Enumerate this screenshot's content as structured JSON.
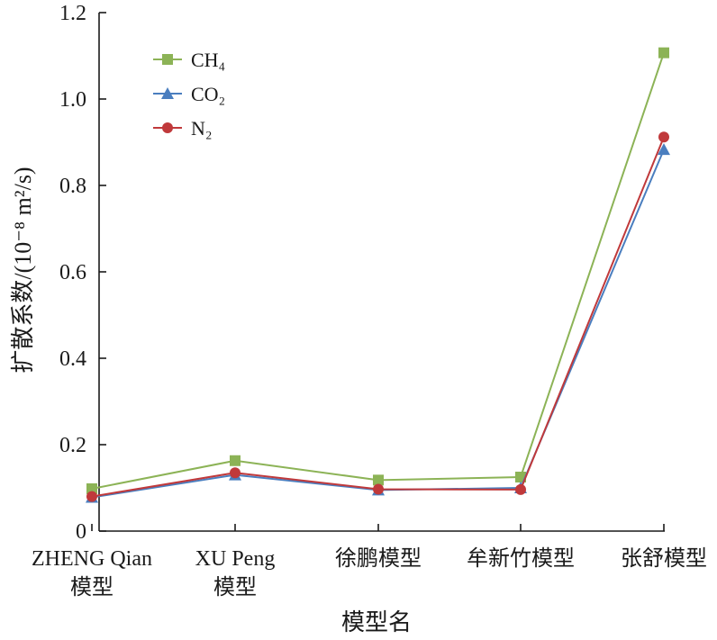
{
  "chart_data": {
    "type": "line",
    "title": "",
    "xlabel": "模型名",
    "ylabel": "扩散系数/(10⁻⁸ m²/s)",
    "ylim": [
      0,
      1.2
    ],
    "yticks": [
      "0",
      "0.2",
      "0.4",
      "0.6",
      "0.8",
      "1.0",
      "1.2"
    ],
    "categories": [
      [
        "ZHENG Qian",
        "模型"
      ],
      [
        "XU Peng",
        "模型"
      ],
      [
        "徐鹏模型"
      ],
      [
        "牟新竹模型"
      ],
      [
        "张舒模型"
      ]
    ],
    "legend_position": "top-left",
    "series": [
      {
        "name": "CH₄",
        "color": "#8cb356",
        "marker": "square",
        "values": [
          0.098,
          0.163,
          0.118,
          0.125,
          1.107
        ]
      },
      {
        "name": "CO₂",
        "color": "#4a7ebf",
        "marker": "triangle",
        "values": [
          0.078,
          0.13,
          0.095,
          0.1,
          0.883
        ]
      },
      {
        "name": "N₂",
        "color": "#c0393b",
        "marker": "circle",
        "values": [
          0.08,
          0.135,
          0.097,
          0.096,
          0.912
        ]
      }
    ]
  }
}
